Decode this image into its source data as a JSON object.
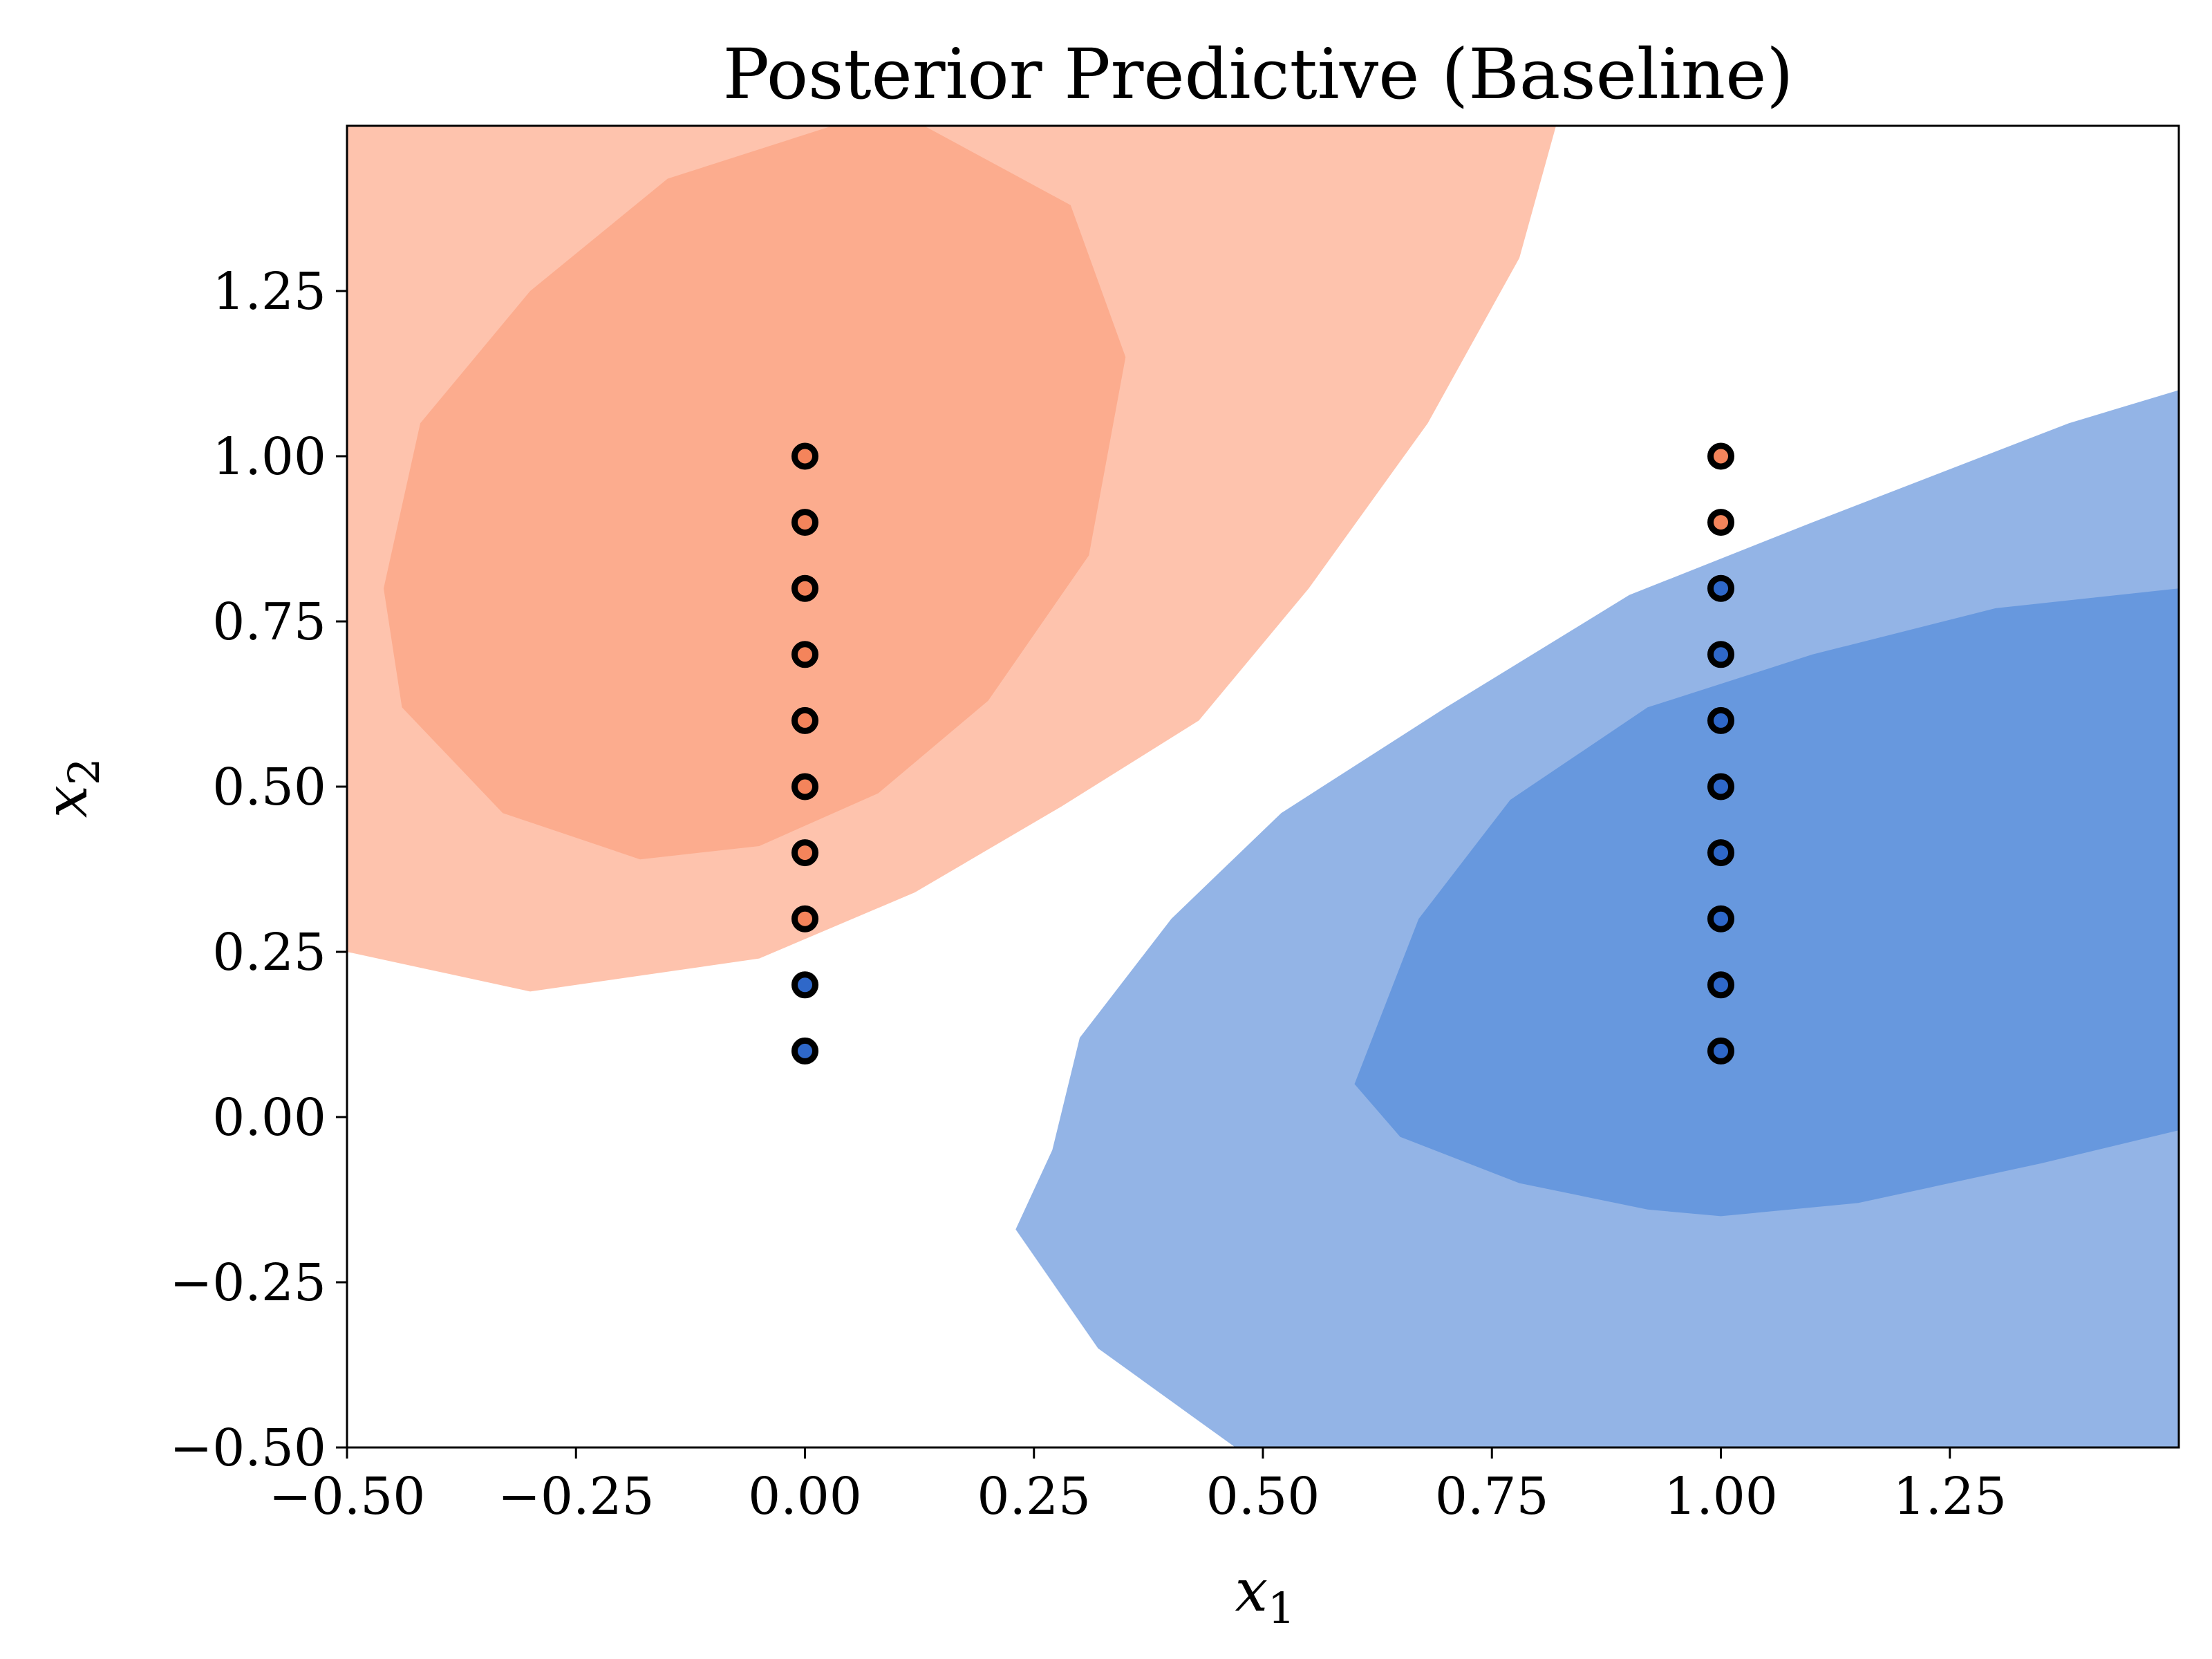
{
  "chart_data": {
    "type": "scatter",
    "title": "Posterior Predictive (Baseline)",
    "xlabel": "x",
    "xlabel_sub": "1",
    "ylabel": "x",
    "ylabel_sub": "2",
    "xlim": [
      -0.5,
      1.5
    ],
    "ylim": [
      -0.5,
      1.5
    ],
    "xticks": [
      -0.5,
      -0.25,
      0.0,
      0.25,
      0.5,
      0.75,
      1.0,
      1.25
    ],
    "xtick_labels": [
      "−0.50",
      "−0.25",
      "0.00",
      "0.25",
      "0.50",
      "0.75",
      "1.00",
      "1.25"
    ],
    "yticks": [
      -0.5,
      -0.25,
      0.0,
      0.25,
      0.5,
      0.75,
      1.0,
      1.25
    ],
    "ytick_labels": [
      "−0.50",
      "−0.25",
      "0.00",
      "0.25",
      "0.50",
      "0.75",
      "1.00",
      "1.25"
    ],
    "grid": false,
    "colors": {
      "red_outer": "#fec3ad",
      "red_inner": "#fcac8e",
      "blue_outer": "#93b4e6",
      "blue_inner": "#6798de",
      "point_red": "#f4845b",
      "point_blue": "#2f68c9",
      "point_edge": "#000000"
    },
    "contours": [
      {
        "class": "red",
        "level": "outer",
        "polygon": [
          [
            -0.5,
            1.5
          ],
          [
            0.82,
            1.5
          ],
          [
            0.78,
            1.3
          ],
          [
            0.68,
            1.05
          ],
          [
            0.55,
            0.8
          ],
          [
            0.43,
            0.6
          ],
          [
            0.28,
            0.47
          ],
          [
            0.12,
            0.34
          ],
          [
            -0.05,
            0.24
          ],
          [
            -0.3,
            0.19
          ],
          [
            -0.5,
            0.25
          ]
        ]
      },
      {
        "class": "red",
        "level": "inner",
        "polygon": [
          [
            0.03,
            1.5
          ],
          [
            0.13,
            1.5
          ],
          [
            0.29,
            1.38
          ],
          [
            0.35,
            1.15
          ],
          [
            0.31,
            0.85
          ],
          [
            0.2,
            0.63
          ],
          [
            0.08,
            0.49
          ],
          [
            -0.05,
            0.41
          ],
          [
            -0.18,
            0.39
          ],
          [
            -0.33,
            0.46
          ],
          [
            -0.44,
            0.62
          ],
          [
            -0.46,
            0.8
          ],
          [
            -0.42,
            1.05
          ],
          [
            -0.3,
            1.25
          ],
          [
            -0.15,
            1.42
          ]
        ]
      },
      {
        "class": "blue",
        "level": "outer",
        "polygon": [
          [
            1.5,
            1.1
          ],
          [
            1.38,
            1.05
          ],
          [
            1.1,
            0.9
          ],
          [
            0.9,
            0.79
          ],
          [
            0.7,
            0.62
          ],
          [
            0.52,
            0.46
          ],
          [
            0.4,
            0.3
          ],
          [
            0.3,
            0.12
          ],
          [
            0.27,
            -0.05
          ],
          [
            0.23,
            -0.17
          ],
          [
            0.32,
            -0.35
          ],
          [
            0.42,
            -0.45
          ],
          [
            0.47,
            -0.5
          ],
          [
            1.5,
            -0.5
          ]
        ]
      },
      {
        "class": "blue",
        "level": "inner",
        "polygon": [
          [
            1.5,
            0.8
          ],
          [
            1.3,
            0.77
          ],
          [
            1.1,
            0.7
          ],
          [
            0.92,
            0.62
          ],
          [
            0.77,
            0.48
          ],
          [
            0.67,
            0.3
          ],
          [
            0.6,
            0.05
          ],
          [
            0.65,
            -0.03
          ],
          [
            0.78,
            -0.1
          ],
          [
            0.92,
            -0.14
          ],
          [
            1.0,
            -0.15
          ],
          [
            1.15,
            -0.13
          ],
          [
            1.35,
            -0.07
          ],
          [
            1.5,
            -0.02
          ]
        ]
      }
    ],
    "points": [
      {
        "x": 0.0,
        "y": 1.0,
        "class": "red"
      },
      {
        "x": 0.0,
        "y": 0.9,
        "class": "red"
      },
      {
        "x": 0.0,
        "y": 0.8,
        "class": "red"
      },
      {
        "x": 0.0,
        "y": 0.7,
        "class": "red"
      },
      {
        "x": 0.0,
        "y": 0.6,
        "class": "red"
      },
      {
        "x": 0.0,
        "y": 0.5,
        "class": "red"
      },
      {
        "x": 0.0,
        "y": 0.4,
        "class": "red"
      },
      {
        "x": 0.0,
        "y": 0.3,
        "class": "red"
      },
      {
        "x": 0.0,
        "y": 0.2,
        "class": "blue"
      },
      {
        "x": 0.0,
        "y": 0.1,
        "class": "blue"
      },
      {
        "x": 1.0,
        "y": 1.0,
        "class": "red"
      },
      {
        "x": 1.0,
        "y": 0.9,
        "class": "red"
      },
      {
        "x": 1.0,
        "y": 0.8,
        "class": "blue"
      },
      {
        "x": 1.0,
        "y": 0.7,
        "class": "blue"
      },
      {
        "x": 1.0,
        "y": 0.6,
        "class": "blue"
      },
      {
        "x": 1.0,
        "y": 0.5,
        "class": "blue"
      },
      {
        "x": 1.0,
        "y": 0.4,
        "class": "blue"
      },
      {
        "x": 1.0,
        "y": 0.3,
        "class": "blue"
      },
      {
        "x": 1.0,
        "y": 0.2,
        "class": "blue"
      },
      {
        "x": 1.0,
        "y": 0.1,
        "class": "blue"
      }
    ]
  }
}
